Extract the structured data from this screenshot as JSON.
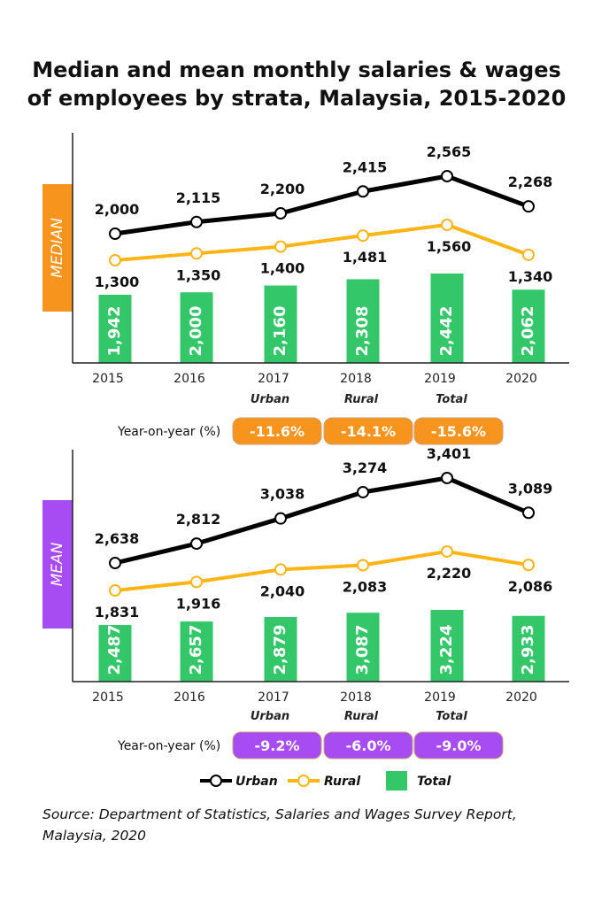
{
  "colors": {
    "urban": "#000000",
    "rural": "#FDB515",
    "total": "#33C76A",
    "median": "#F7941D",
    "mean": "#A64CF2"
  },
  "chart_data": [
    {
      "type": "line+bar",
      "title": "Median and mean monthly salaries & wages of employees by strata, Malaysia, 2015-2020",
      "panel_label": "MEDIAN",
      "categories": [
        "2015",
        "2016",
        "2017",
        "2018",
        "2019",
        "2020"
      ],
      "series": [
        {
          "name": "Urban",
          "type": "line",
          "values": [
            2000,
            2115,
            2200,
            2415,
            2565,
            2268
          ]
        },
        {
          "name": "Rural",
          "type": "line",
          "values": [
            1300,
            1350,
            1400,
            1481,
            1560,
            1340
          ]
        },
        {
          "name": "Total",
          "type": "bar",
          "values": [
            1942,
            2000,
            2160,
            2308,
            2442,
            2062
          ]
        }
      ],
      "yoy_label": "Year-on-year (%)",
      "yoy": [
        {
          "name": "Urban",
          "value": "-11.6%"
        },
        {
          "name": "Rural",
          "value": "-14.1%"
        },
        {
          "name": "Total",
          "value": "-15.6%"
        }
      ]
    },
    {
      "type": "line+bar",
      "panel_label": "MEAN",
      "categories": [
        "2015",
        "2016",
        "2017",
        "2018",
        "2019",
        "2020"
      ],
      "series": [
        {
          "name": "Urban",
          "type": "line",
          "values": [
            2638,
            2812,
            3038,
            3274,
            3401,
            3089
          ]
        },
        {
          "name": "Rural",
          "type": "line",
          "values": [
            1831,
            1916,
            2040,
            2083,
            2220,
            2086
          ]
        },
        {
          "name": "Total",
          "type": "bar",
          "values": [
            2487,
            2657,
            2879,
            3087,
            3224,
            2933
          ]
        }
      ],
      "yoy_label": "Year-on-year (%)",
      "yoy": [
        {
          "name": "Urban",
          "value": "-9.2%"
        },
        {
          "name": "Rural",
          "value": "-6.0%"
        },
        {
          "name": "Total",
          "value": "-9.0%"
        }
      ]
    }
  ],
  "title_lines": [
    "Median and mean monthly salaries & wages",
    "of employees by strata, Malaysia, 2015-2020"
  ],
  "legend": [
    {
      "name": "Urban"
    },
    {
      "name": "Rural"
    },
    {
      "name": "Total"
    }
  ],
  "source_lines": [
    "Source: Department of Statistics, Salaries and Wages Survey Report,",
    "Malaysia, 2020"
  ]
}
